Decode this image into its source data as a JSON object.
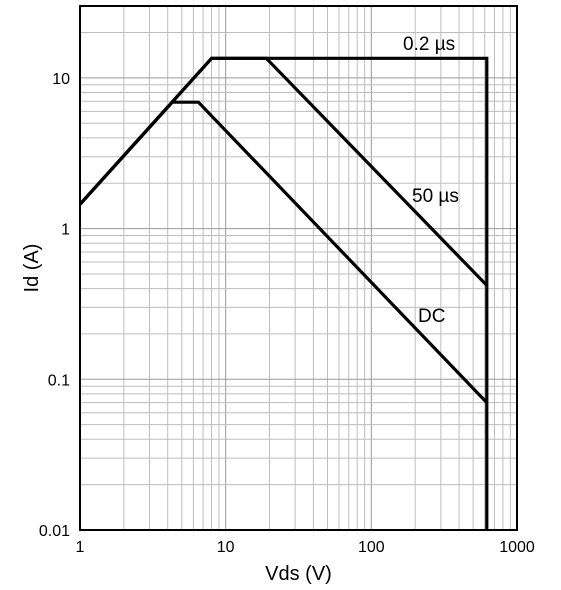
{
  "chart_data": {
    "type": "line",
    "title": "",
    "xlabel": "Vds (V)",
    "ylabel": "Id (A)",
    "x_scale": "log",
    "y_scale": "log",
    "xlim": [
      1,
      1000
    ],
    "ylim": [
      0.01,
      30
    ],
    "grid": true,
    "x_ticks": [
      {
        "value": 1,
        "label": "1"
      },
      {
        "value": 10,
        "label": "10"
      },
      {
        "value": 100,
        "label": "100"
      },
      {
        "value": 1000,
        "label": "1000"
      }
    ],
    "y_ticks": [
      {
        "value": 0.01,
        "label": "0.01"
      },
      {
        "value": 0.1,
        "label": "0.1"
      },
      {
        "value": 1,
        "label": "1"
      },
      {
        "value": 10,
        "label": "10"
      }
    ],
    "series": [
      {
        "name": "0.2 µs",
        "x": [
          1,
          8,
          620,
          620
        ],
        "y": [
          1.45,
          13.5,
          13.5,
          0.01
        ]
      },
      {
        "name": "50 µs",
        "x": [
          1,
          8,
          19,
          620
        ],
        "y": [
          1.45,
          13.5,
          13.5,
          0.42
        ]
      },
      {
        "name": "DC",
        "x": [
          1,
          4.3,
          6.5,
          620
        ],
        "y": [
          1.45,
          6.9,
          6.9,
          0.07
        ]
      }
    ],
    "annotations": [
      {
        "text": "0.2 µs",
        "series": "0.2 µs"
      },
      {
        "text": "50 µs",
        "series": "50 µs"
      },
      {
        "text": "DC",
        "series": "DC"
      }
    ]
  }
}
